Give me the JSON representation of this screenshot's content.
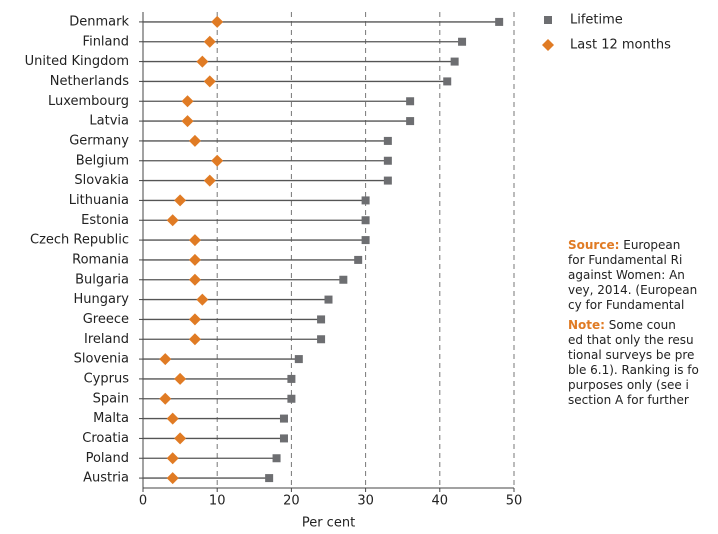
{
  "chart_data": {
    "type": "dot",
    "categories": [
      "Denmark",
      "Finland",
      "United Kingdom",
      "Netherlands",
      "Luxembourg",
      "Latvia",
      "Germany",
      "Belgium",
      "Slovakia",
      "Lithuania",
      "Estonia",
      "Czech Republic",
      "Romania",
      "Bulgaria",
      "Hungary",
      "Greece",
      "Ireland",
      "Slovenia",
      "Cyprus",
      "Spain",
      "Malta",
      "Croatia",
      "Poland",
      "Austria"
    ],
    "series": [
      {
        "name": "Lifetime",
        "color": "#6d6e71",
        "marker": "square",
        "values": [
          48,
          43,
          42,
          41,
          36,
          36,
          33,
          33,
          33,
          30,
          30,
          30,
          29,
          27,
          25,
          24,
          24,
          21,
          20,
          20,
          19,
          19,
          18,
          17
        ]
      },
      {
        "name": "Last 12 months",
        "color": "#e07b24",
        "marker": "diamond",
        "values": [
          10,
          9,
          8,
          9,
          6,
          6,
          7,
          10,
          9,
          5,
          4,
          7,
          7,
          7,
          8,
          7,
          7,
          3,
          5,
          3,
          4,
          5,
          4,
          4
        ]
      }
    ],
    "xlabel": "Per cent",
    "xlim": [
      0,
      50
    ],
    "xticks": [
      0,
      10,
      20,
      30,
      40,
      50
    ],
    "grid": true
  },
  "notes": {
    "source_label": "Source:",
    "source_lines": [
      "European",
      "for Fundamental Ri",
      "against Women: An",
      "vey, 2014. (European",
      "cy for Fundamental"
    ],
    "note_label": "Note:",
    "note_lines": [
      "Some coun",
      "ed that only the resu",
      "tional surveys be pre",
      "ble 6.1). Ranking is fo",
      "purposes only (see i",
      "section A for further"
    ]
  }
}
